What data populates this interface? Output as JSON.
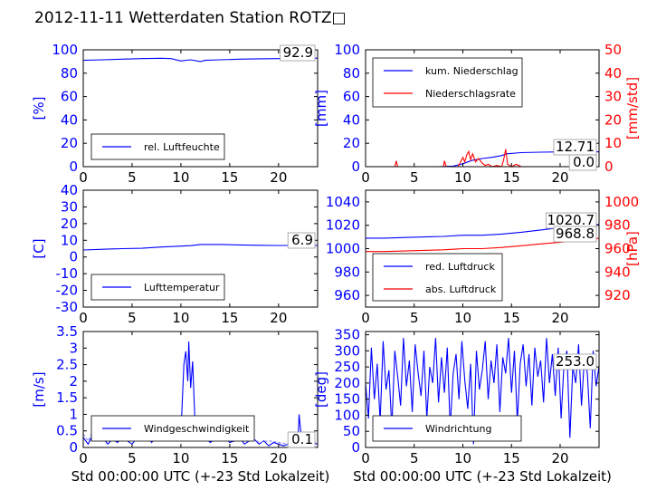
{
  "page": {
    "title": "2012-11-11 Wetterdaten Station ROTZ□"
  },
  "colors": {
    "primary": "#0000ff",
    "secondary": "#ff0000",
    "frame": "#000000"
  },
  "chart_data": [
    {
      "type": "line",
      "id": "humidity",
      "ylabel": "[%]",
      "xlim": [
        0,
        24
      ],
      "ylim": [
        0,
        100
      ],
      "xticks": [
        0,
        5,
        10,
        15,
        20
      ],
      "yticks": [
        0,
        20,
        40,
        60,
        80,
        100
      ],
      "latest_label": "92.9",
      "legend": [
        "rel. Luftfeuchte"
      ],
      "legend_position": "lower-left",
      "series": [
        {
          "name": "rel. Luftfeuchte",
          "color": "#0000ff",
          "x": [
            0,
            2,
            4,
            6,
            8,
            9,
            10,
            11,
            12,
            12.5,
            14,
            16,
            18,
            20,
            22,
            24
          ],
          "y": [
            91,
            91.5,
            92,
            92.5,
            92.8,
            92.5,
            90.5,
            91.5,
            90,
            91,
            91.5,
            92,
            92.3,
            92.5,
            92.8,
            92.9
          ]
        }
      ]
    },
    {
      "type": "line",
      "id": "precipitation",
      "ylabel": "[mm]",
      "ylabel2": "[mm/std]",
      "xlim": [
        0,
        24
      ],
      "ylim": [
        0,
        100
      ],
      "ylim2": [
        0,
        50
      ],
      "xticks": [
        0,
        5,
        10,
        15,
        20
      ],
      "yticks": [
        0,
        20,
        40,
        60,
        80,
        100
      ],
      "yticks2": [
        0,
        10,
        20,
        30,
        40,
        50
      ],
      "latest_label": "12.71",
      "latest_label2": "0.0",
      "legend": [
        "kum. Niederschlag",
        "Niederschlagsrate"
      ],
      "legend_position": "upper-left",
      "series": [
        {
          "name": "kum. Niederschlag",
          "color": "#0000ff",
          "axis": "left",
          "x": [
            0,
            7.5,
            9,
            10,
            10.5,
            11,
            12,
            13,
            14,
            14.5,
            16,
            18,
            20,
            22,
            24
          ],
          "y": [
            0,
            0,
            0.5,
            2.5,
            4,
            5.5,
            7,
            8,
            9.5,
            11,
            12,
            12.4,
            12.6,
            12.7,
            12.71
          ]
        },
        {
          "name": "Niederschlagsrate",
          "color": "#ff0000",
          "axis": "right",
          "x": [
            0,
            3,
            3.15,
            3.3,
            6,
            8,
            8.1,
            8.3,
            9.5,
            9.7,
            10,
            10.2,
            10.4,
            10.6,
            10.8,
            11,
            11.3,
            11.6,
            12,
            12.3,
            12.6,
            13,
            13.5,
            14,
            14.2,
            14.4,
            14.6,
            15,
            15.5,
            16,
            20,
            24
          ],
          "y": [
            0,
            0,
            2.5,
            0,
            0,
            0,
            2.5,
            0,
            0,
            1.5,
            4,
            2,
            5,
            6.5,
            3,
            5.5,
            2,
            3.5,
            1.5,
            0.5,
            1,
            0,
            0.5,
            0,
            3,
            7.5,
            1,
            0,
            1,
            0,
            0,
            0
          ]
        }
      ]
    },
    {
      "type": "line",
      "id": "temperature",
      "ylabel": "[C]",
      "xlim": [
        0,
        24
      ],
      "ylim": [
        -30,
        40
      ],
      "xticks": [
        0,
        5,
        10,
        15,
        20
      ],
      "yticks": [
        -30,
        -20,
        -10,
        0,
        10,
        20,
        30,
        40
      ],
      "latest_label": "6.9",
      "legend": [
        "Lufttemperatur"
      ],
      "legend_position": "lower-left",
      "series": [
        {
          "name": "Lufttemperatur",
          "color": "#0000ff",
          "x": [
            0,
            2,
            4,
            6,
            8,
            10,
            11,
            12,
            14,
            16,
            18,
            20,
            22,
            24
          ],
          "y": [
            4.2,
            4.6,
            5,
            5.2,
            6,
            6.5,
            6.8,
            7.5,
            7.5,
            7.2,
            7,
            6.9,
            6.9,
            6.9
          ]
        }
      ]
    },
    {
      "type": "line",
      "id": "pressure",
      "ylabel2": "[hPa]",
      "xlim": [
        0,
        24
      ],
      "ylim": [
        950,
        1050
      ],
      "ylim2": [
        910,
        1010
      ],
      "xticks": [
        0,
        5,
        10,
        15,
        20
      ],
      "yticks": [
        960,
        980,
        1000,
        1020,
        1040
      ],
      "yticks2": [
        920,
        940,
        960,
        980,
        1000
      ],
      "latest_label": "1020.7",
      "latest_label2": "968.8",
      "legend": [
        "red. Luftdruck",
        "abs. Luftdruck"
      ],
      "legend_position": "lower-left",
      "series": [
        {
          "name": "red. Luftdruck",
          "color": "#0000ff",
          "axis": "left",
          "x": [
            0,
            2,
            4,
            6,
            8,
            10,
            12,
            14,
            16,
            18,
            20,
            22,
            24
          ],
          "y": [
            1009,
            1009,
            1009.5,
            1010,
            1010.5,
            1011.5,
            1011.5,
            1012.5,
            1014,
            1016,
            1018,
            1019.5,
            1020.7
          ]
        },
        {
          "name": "abs. Luftdruck",
          "color": "#ff0000",
          "axis": "right",
          "x": [
            0,
            2,
            4,
            6,
            8,
            10,
            12,
            14,
            16,
            18,
            20,
            22,
            24
          ],
          "y": [
            957.5,
            957.5,
            958,
            958.5,
            959,
            960,
            960,
            961,
            962.5,
            964,
            965.5,
            967.5,
            968.8
          ]
        }
      ]
    },
    {
      "type": "line",
      "id": "windspeed",
      "ylabel": "[m/s]",
      "xlabel": "Std 00:00:00 UTC (+-23 Std Lokalzeit)",
      "xlim": [
        0,
        24
      ],
      "ylim": [
        0,
        3.5
      ],
      "xticks": [
        0,
        5,
        10,
        15,
        20
      ],
      "yticks": [
        0,
        0.5,
        1,
        1.5,
        2,
        2.5,
        3,
        3.5
      ],
      "latest_label": "0.1",
      "legend": [
        "Windgeschwindigkeit"
      ],
      "legend_position": "lower-left",
      "series": [
        {
          "name": "Windgeschwindigkeit",
          "color": "#0000ff",
          "x": [
            0,
            0.5,
            1,
            1.5,
            2,
            2.5,
            3,
            3.5,
            4,
            4.5,
            5,
            5.5,
            6,
            6.5,
            7,
            7.5,
            8,
            8.5,
            9,
            9.5,
            10,
            10.3,
            10.5,
            10.7,
            10.8,
            11,
            11.2,
            11.5,
            12,
            12.5,
            13,
            13.5,
            14,
            14.5,
            15,
            15.5,
            16,
            16.5,
            17,
            17.5,
            18,
            18.5,
            19,
            19.5,
            20,
            20.5,
            21,
            21.5,
            22,
            22.1,
            22.3,
            22.5,
            23,
            23.5,
            24
          ],
          "y": [
            0.3,
            0.1,
            0.4,
            0.2,
            0.3,
            0.1,
            0.25,
            0.15,
            0.3,
            0.2,
            0.1,
            0.3,
            0.2,
            0.4,
            0.15,
            0.3,
            0.2,
            0.25,
            0.3,
            0.2,
            0.4,
            2.5,
            2.9,
            2.0,
            3.2,
            1.8,
            2.6,
            0.3,
            0.2,
            0.3,
            0.15,
            0.25,
            0.2,
            0.3,
            0.15,
            0.2,
            0.3,
            0.1,
            0.2,
            0.25,
            0.1,
            0.2,
            0.05,
            0.15,
            0.1,
            0.05,
            0.1,
            0.05,
            0.2,
            1.0,
            0.4,
            0.1,
            0.05,
            0.15,
            0.1
          ]
        },
        {
          "name": "",
          "color": "#8080ff",
          "dashed": true,
          "x": [
            0,
            0.5,
            1,
            1.5,
            2,
            2.5,
            3,
            3.5,
            4,
            4.5,
            5,
            5.5,
            6,
            6.5,
            7,
            7.5,
            8,
            8.5,
            9,
            9.5,
            10,
            10.5,
            11,
            11.5,
            12,
            12.5,
            13,
            13.5,
            14,
            14.5,
            15,
            15.5,
            16,
            16.5,
            17,
            17.5,
            18,
            19,
            20,
            21,
            22,
            23,
            24
          ],
          "y": [
            0.4,
            0.2,
            0.5,
            0.3,
            0.35,
            0.2,
            0.45,
            0.25,
            0.5,
            0.3,
            0.2,
            0.55,
            0.3,
            0.6,
            0.25,
            0.5,
            0.3,
            0.45,
            0.55,
            0.35,
            0.6,
            0.5,
            0.4,
            0.5,
            0.3,
            0.45,
            0.25,
            0.4,
            0.3,
            0.5,
            0.25,
            0.35,
            0.4,
            0.2,
            0.3,
            0.25,
            0.15,
            0.2,
            0.15,
            0.1,
            0.2,
            0.1,
            0.15
          ]
        }
      ]
    },
    {
      "type": "line",
      "id": "winddirection",
      "ylabel": "[deg]",
      "xlabel": "Std 00:00:00 UTC (+-23 Std Lokalzeit)",
      "xlim": [
        0,
        24
      ],
      "ylim": [
        0,
        360
      ],
      "xticks": [
        0,
        5,
        10,
        15,
        20
      ],
      "yticks": [
        0,
        50,
        100,
        150,
        200,
        250,
        300,
        350
      ],
      "latest_label": "253.0",
      "legend": [
        "Windrichtung"
      ],
      "legend_position": "lower-left",
      "series": [
        {
          "name": "Windrichtung",
          "color": "#0000ff",
          "x": [
            0,
            0.3,
            0.6,
            0.9,
            1.2,
            1.5,
            1.8,
            2.1,
            2.4,
            2.7,
            3,
            3.3,
            3.6,
            3.9,
            4.2,
            4.5,
            4.8,
            5.1,
            5.4,
            5.7,
            6,
            6.3,
            6.6,
            6.9,
            7.2,
            7.5,
            7.8,
            8.1,
            8.4,
            8.7,
            9,
            9.3,
            9.6,
            9.9,
            10.2,
            10.5,
            10.8,
            11.1,
            11.4,
            11.7,
            12,
            12.3,
            12.6,
            12.9,
            13.2,
            13.5,
            13.8,
            14.1,
            14.4,
            14.7,
            15,
            15.3,
            15.6,
            15.9,
            16.2,
            16.5,
            16.8,
            17.1,
            17.4,
            17.7,
            18,
            18.3,
            18.6,
            18.9,
            19.2,
            19.5,
            19.8,
            20.1,
            20.4,
            20.7,
            21,
            21.3,
            21.6,
            21.9,
            22.2,
            22.5,
            22.8,
            23.1,
            23.4,
            23.7,
            24
          ],
          "y": [
            200,
            90,
            310,
            150,
            260,
            80,
            330,
            180,
            240,
            60,
            300,
            220,
            130,
            340,
            190,
            270,
            110,
            320,
            230,
            160,
            300,
            90,
            250,
            200,
            340,
            140,
            280,
            170,
            310,
            60,
            230,
            290,
            150,
            330,
            210,
            120,
            260,
            10,
            300,
            180,
            240,
            330,
            150,
            270,
            200,
            320,
            110,
            280,
            230,
            340,
            170,
            300,
            80,
            260,
            320,
            190,
            290,
            130,
            310,
            220,
            270,
            140,
            340,
            200,
            290,
            160,
            310,
            90,
            260,
            300,
            30,
            250,
            200,
            320,
            130,
            280,
            230,
            60,
            300,
            190,
            253
          ]
        }
      ]
    }
  ]
}
